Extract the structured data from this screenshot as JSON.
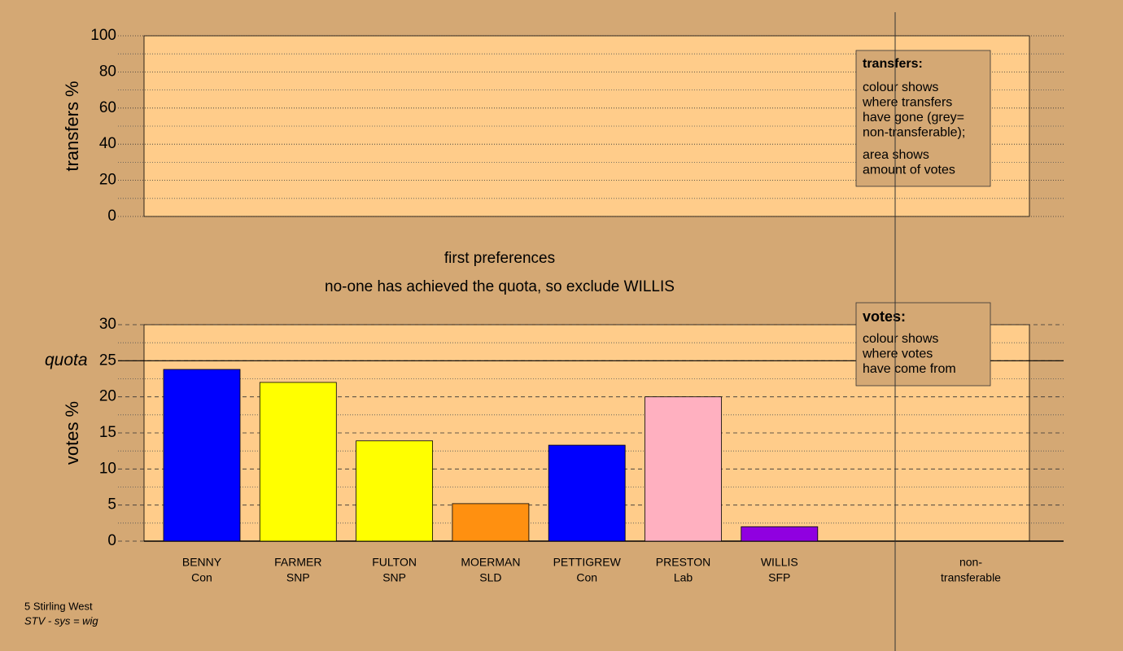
{
  "chart_data": [
    {
      "type": "bar",
      "ylabel": "transfers %",
      "ylim": [
        0,
        100
      ],
      "yticks": [
        0,
        20,
        40,
        60,
        80,
        100
      ],
      "minor_yticks": [
        10,
        30,
        50,
        70,
        90
      ],
      "legend": {
        "title": "transfers:",
        "paragraphs": [
          [
            "colour shows",
            "where transfers",
            "have gone (grey=",
            "non-transferable);"
          ],
          [
            "area shows",
            "amount of votes"
          ]
        ]
      }
    },
    {
      "type": "bar",
      "title": "first preferences",
      "subtitle": "no-one has achieved the quota, so exclude WILLIS",
      "ylabel": "votes %",
      "ylim": [
        0,
        30
      ],
      "yticks": [
        0,
        5,
        10,
        15,
        20,
        25,
        30
      ],
      "minor_yticks": [
        2.5,
        7.5,
        12.5,
        17.5,
        22.5,
        27.5
      ],
      "quota": {
        "value": 25,
        "label": "quota"
      },
      "categories": [
        "BENNY",
        "FARMER",
        "FULTON",
        "MOERMAN",
        "PETTIGREW",
        "PRESTON",
        "WILLIS"
      ],
      "parties": [
        "Con",
        "SNP",
        "SNP",
        "SLD",
        "Con",
        "Lab",
        "SFP"
      ],
      "values": [
        23.8,
        22.0,
        13.9,
        5.2,
        13.3,
        20.0,
        2.0
      ],
      "colors": [
        "#0000ff",
        "#ffff00",
        "#ffff00",
        "#ff9010",
        "#0000ff",
        "#ffb0c0",
        "#9000e0"
      ],
      "extra_column": [
        "non-",
        "transferable"
      ],
      "legend": {
        "title": "votes:",
        "paragraphs": [
          [
            "colour shows",
            "where votes",
            "have come from"
          ]
        ]
      }
    }
  ],
  "footer": {
    "line1": "5 Stirling West",
    "line2": "STV - sys = wig"
  }
}
